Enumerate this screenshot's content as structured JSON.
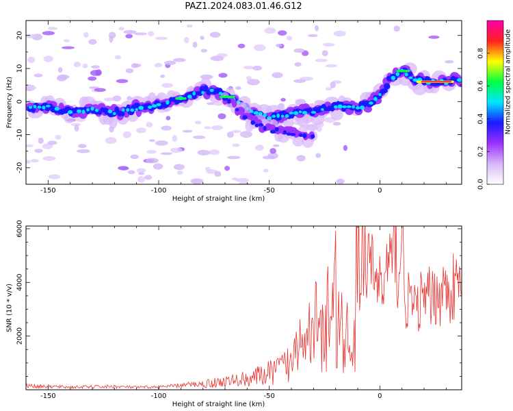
{
  "figure": {
    "title": "PAZ1.2024.083.01.46.G12"
  },
  "chart_data": [
    {
      "type": "heatmap",
      "title": "",
      "xlabel": "Height of straight line (km)",
      "ylabel": "Frequency (Hz)",
      "xlim": [
        -160,
        37
      ],
      "ylim": [
        -25,
        24.5
      ],
      "xticks": [
        -150,
        -100,
        -50,
        0
      ],
      "yticks": [
        -20,
        -10,
        0,
        10,
        20
      ],
      "grid": false,
      "colorbar": {
        "label": "Normalized spectral amplitude",
        "range": [
          0,
          1
        ],
        "ticks": [
          0.0,
          0.2,
          0.4,
          0.6,
          0.8
        ],
        "colormap": [
          "#ffffff",
          "#d8b8f8",
          "#9b30ff",
          "#1a1aff",
          "#00e5ff",
          "#00ff40",
          "#ffff00",
          "#ff2020",
          "#ff00aa"
        ]
      },
      "ridge_line": {
        "x": [
          -158,
          -152,
          -140,
          -130,
          -120,
          -110,
          -100,
          -92,
          -85,
          -78,
          -72,
          -65,
          -58,
          -50,
          -42,
          -36,
          -30,
          -24,
          -20,
          -15,
          -10,
          -5,
          0,
          5,
          10,
          15,
          20,
          25,
          30,
          37
        ],
        "y": [
          -2,
          -1.5,
          -3,
          -2.5,
          -3.5,
          -2,
          -1,
          0.5,
          2,
          3.5,
          2.5,
          0,
          -3,
          -5,
          -4,
          -3,
          -3,
          -2,
          -1.5,
          -1.5,
          -2,
          -1,
          2,
          7,
          9.5,
          7,
          6,
          6,
          6,
          6.5
        ]
      },
      "secondary_line": {
        "x": [
          -70,
          -65,
          -60,
          -55,
          -50,
          -45,
          -40,
          -35,
          -30
        ],
        "y": [
          1,
          -2,
          -5,
          -7,
          -8.5,
          -9,
          -9.5,
          -10.5,
          -11
        ]
      }
    },
    {
      "type": "line",
      "title": "",
      "xlabel": "Height of straight line (km)",
      "ylabel": "SNR (10 * v/v)",
      "xlim": [
        -160,
        37
      ],
      "ylim": [
        0,
        6100
      ],
      "xticks": [
        -150,
        -100,
        -50,
        0
      ],
      "yticks": [
        2000,
        4000,
        6000
      ],
      "grid": false,
      "color": "#e8302e",
      "series": [
        {
          "x": [
            -160,
            -150,
            -140,
            -130,
            -120,
            -110,
            -100,
            -95,
            -90,
            -85,
            -80,
            -75,
            -70,
            -65,
            -60,
            -55,
            -50,
            -45,
            -40,
            -35,
            -30,
            -27,
            -25,
            -22,
            -20,
            -18,
            -15,
            -13,
            -11,
            -10,
            -9,
            -8,
            -6,
            -4,
            -2,
            0,
            2,
            4,
            6,
            7,
            8,
            10,
            12,
            14,
            16,
            18,
            20,
            22,
            24,
            26,
            28,
            30,
            32,
            34,
            37
          ],
          "values": [
            150,
            120,
            100,
            110,
            120,
            90,
            100,
            130,
            160,
            200,
            220,
            260,
            300,
            350,
            420,
            500,
            620,
            800,
            1000,
            1300,
            1700,
            2200,
            1800,
            2500,
            3300,
            2400,
            1600,
            1200,
            2000,
            6100,
            4200,
            5600,
            4400,
            4600,
            4200,
            4000,
            3800,
            5000,
            4400,
            6100,
            4000,
            5800,
            3100,
            3500,
            2800,
            3400,
            3200,
            3400,
            3500,
            3600,
            3650,
            3700,
            3750,
            3800,
            3750
          ]
        }
      ]
    }
  ]
}
